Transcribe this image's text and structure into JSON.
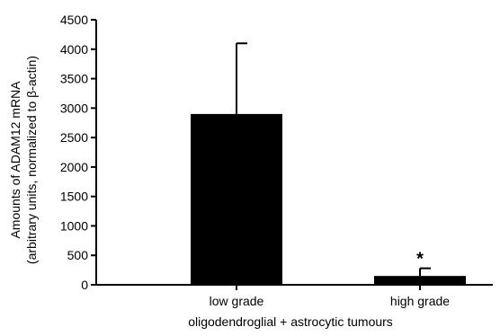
{
  "chart_data": {
    "type": "bar",
    "categories": [
      "low grade",
      "high grade"
    ],
    "values": [
      2900,
      150
    ],
    "errors": [
      1200,
      130
    ],
    "annotations": [
      {
        "category": "high grade",
        "text": "*"
      }
    ],
    "xlabel": "oligodendroglial + astrocytic tumours",
    "ylabel_line1": "Amounts of ADAM12 mRNA",
    "ylabel_line2": "(arbitrary units, normalized to β-actin)",
    "ylim": [
      0,
      4500
    ],
    "yticks": [
      0,
      500,
      1000,
      1500,
      2000,
      2500,
      3000,
      3500,
      4000,
      4500
    ],
    "bar_color": "#000000",
    "grid": false
  }
}
